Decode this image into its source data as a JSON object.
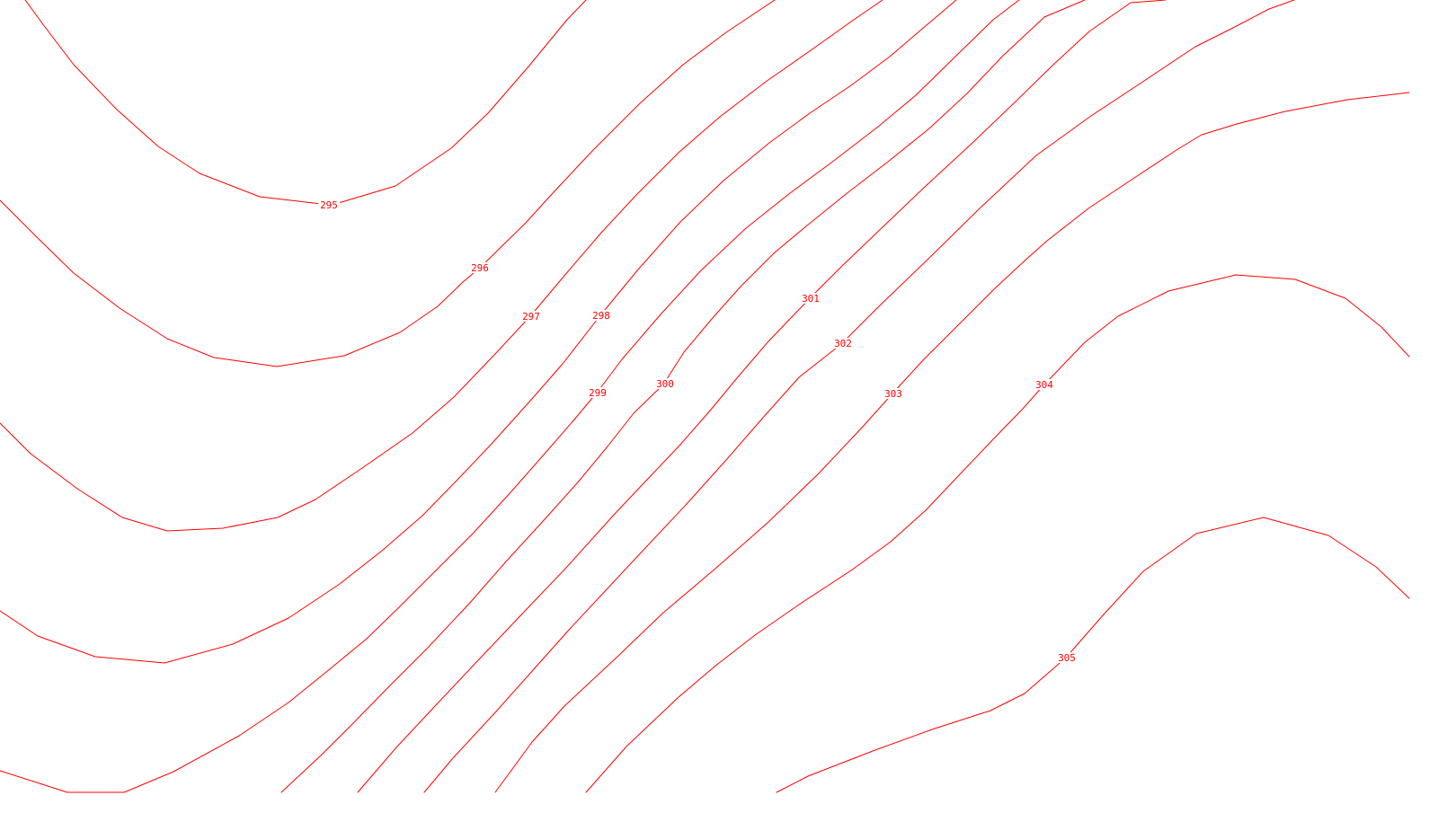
{
  "map": {
    "type": "contour",
    "line_color": "#ff0000",
    "background_color": "#ffffff",
    "contours": [
      {
        "level": "295",
        "label": "295"
      },
      {
        "level": "296",
        "label": "296"
      },
      {
        "level": "297",
        "label": "297"
      },
      {
        "level": "298",
        "label": "298"
      },
      {
        "level": "299",
        "label": "299"
      },
      {
        "level": "300",
        "label": "300"
      },
      {
        "level": "301",
        "label": "301"
      },
      {
        "level": "302",
        "label": "302"
      },
      {
        "level": "303",
        "label": "303"
      },
      {
        "level": "304",
        "label": "304"
      },
      {
        "level": "305",
        "label": "305"
      }
    ]
  }
}
